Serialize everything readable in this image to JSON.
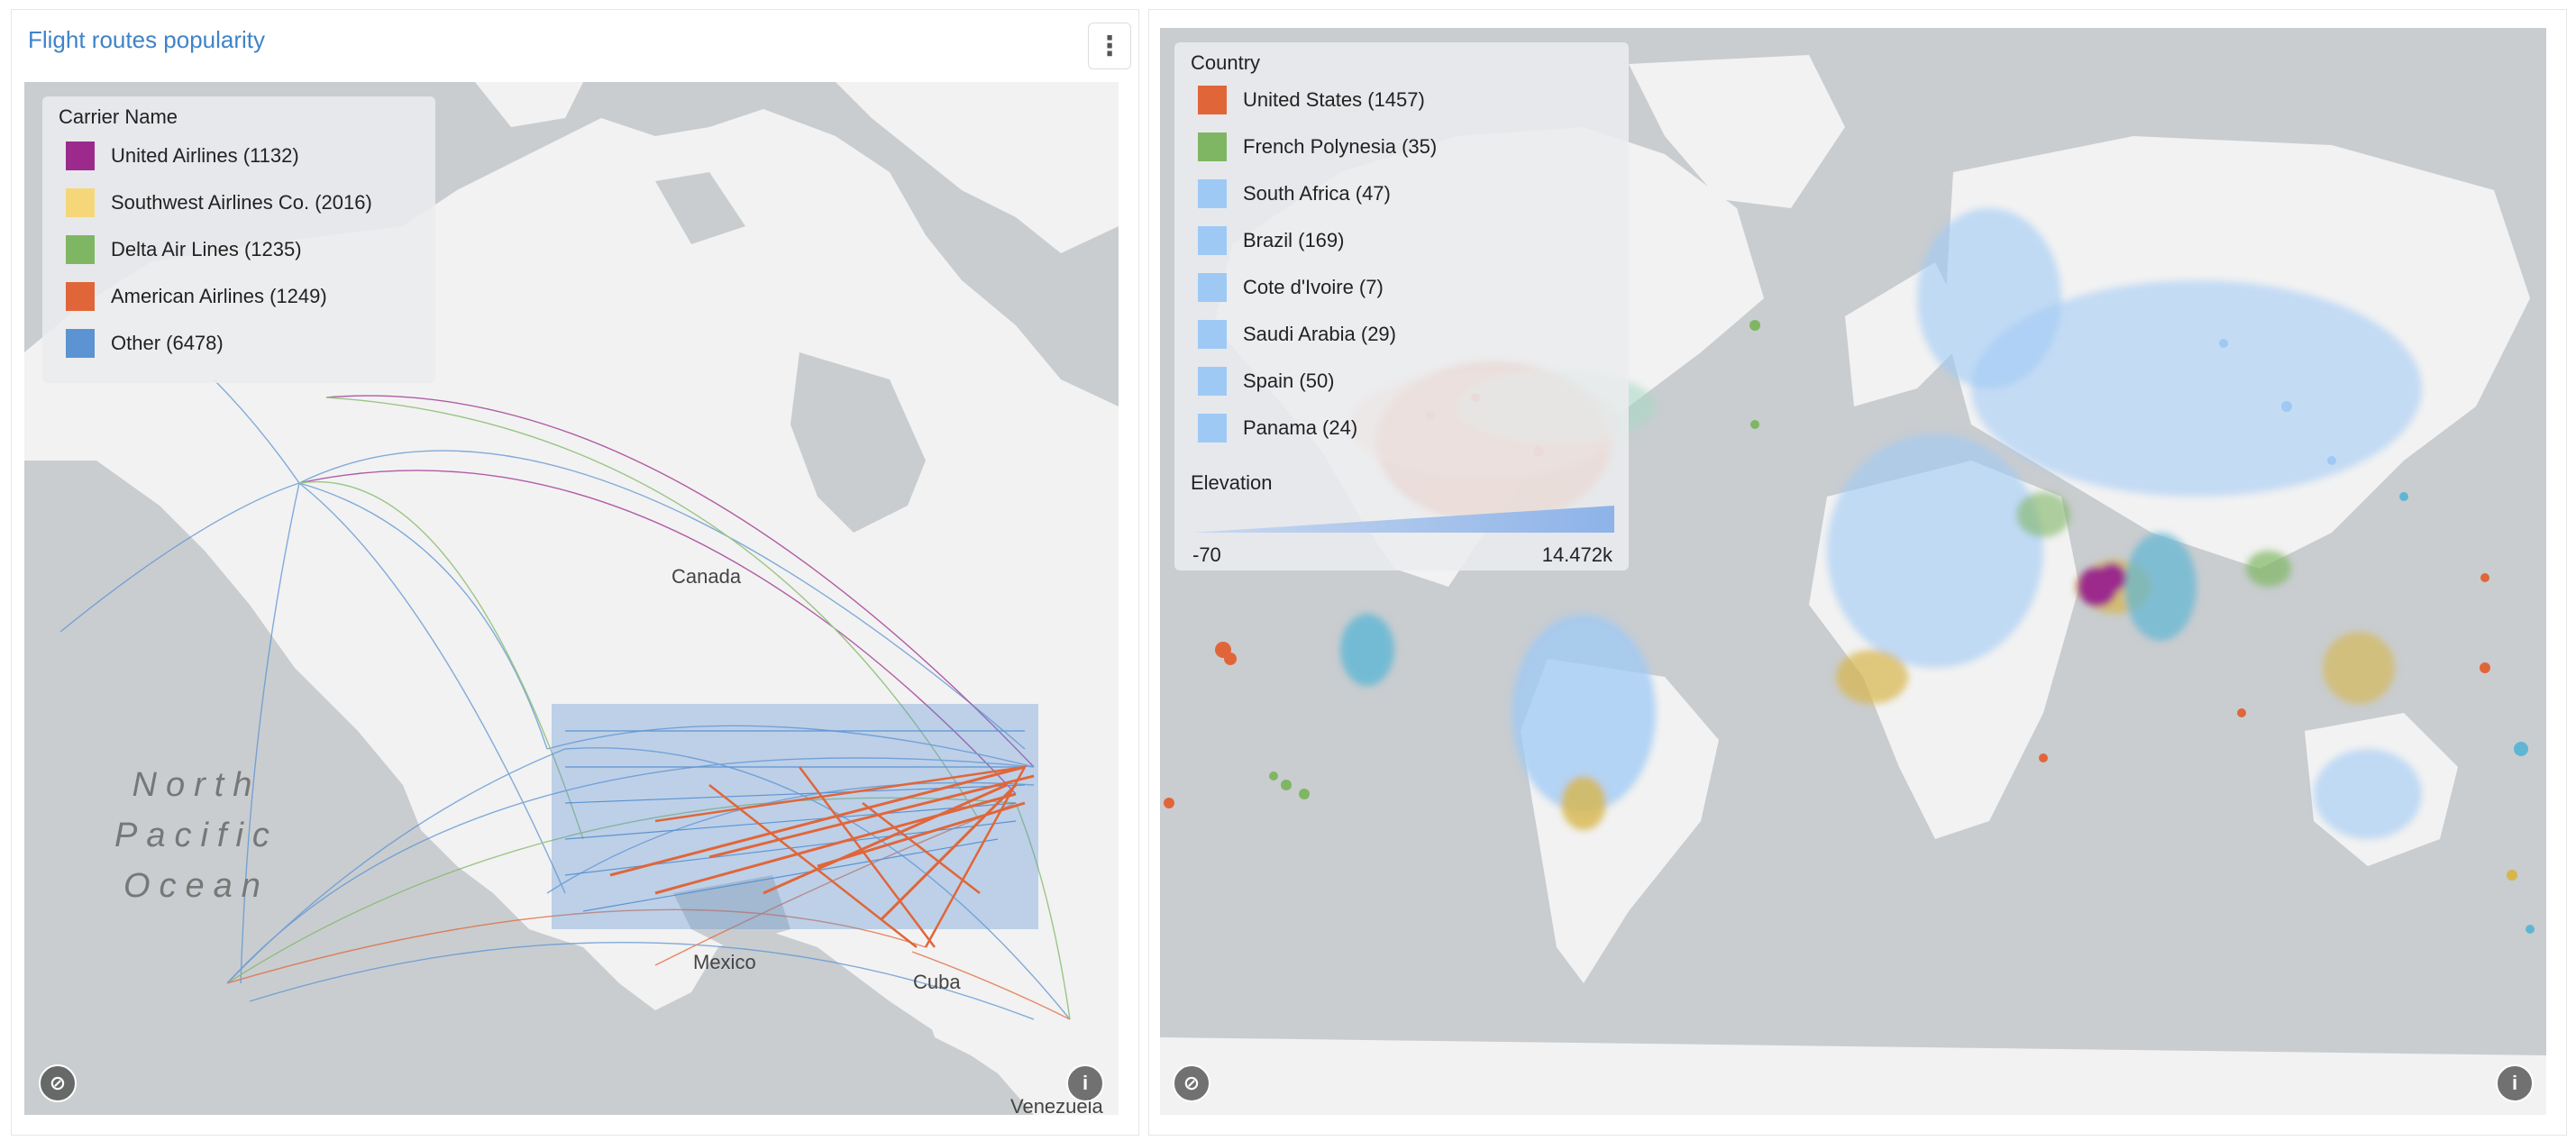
{
  "panel1": {
    "title": "Flight routes popularity",
    "legend": {
      "title": "Carrier Name",
      "items": [
        {
          "label": "United Airlines (1132)",
          "color": "#9b2a8c"
        },
        {
          "label": "Southwest Airlines Co. (2016)",
          "color": "#f5d77a"
        },
        {
          "label": "Delta Air Lines (1235)",
          "color": "#7fb663"
        },
        {
          "label": "American Airlines (1249)",
          "color": "#e0663a"
        },
        {
          "label": "Other (6478)",
          "color": "#5b93d3"
        }
      ]
    },
    "labels": {
      "canada": "Canada",
      "mexico": "Mexico",
      "cuba": "Cuba",
      "venezuela": "Venezuela",
      "ocean_line1": "North",
      "ocean_line2": "Pacific",
      "ocean_line3": "Ocean"
    }
  },
  "panel2": {
    "legend": {
      "title": "Country",
      "items": [
        {
          "label": "United States (1457)",
          "color": "#e0663a"
        },
        {
          "label": "French Polynesia (35)",
          "color": "#7fb663"
        },
        {
          "label": "South Africa (47)",
          "color": "#9ec9f5"
        },
        {
          "label": "Brazil (169)",
          "color": "#9ec9f5"
        },
        {
          "label": "Cote d'Ivoire (7)",
          "color": "#9ec9f5"
        },
        {
          "label": "Saudi Arabia (29)",
          "color": "#9ec9f5"
        },
        {
          "label": "Spain (50)",
          "color": "#9ec9f5"
        },
        {
          "label": "Panama (24)",
          "color": "#9ec9f5"
        }
      ],
      "elevation_title": "Elevation",
      "elevation_min": "-70",
      "elevation_max": "14.472k"
    }
  },
  "colors": {
    "accent": "#3f83c9",
    "map_water": "#c9cdd0",
    "map_land": "#f2f2f2"
  },
  "icons": {
    "menu": "more-vertical-icon",
    "compass": "compass-icon",
    "info": "info-icon"
  }
}
